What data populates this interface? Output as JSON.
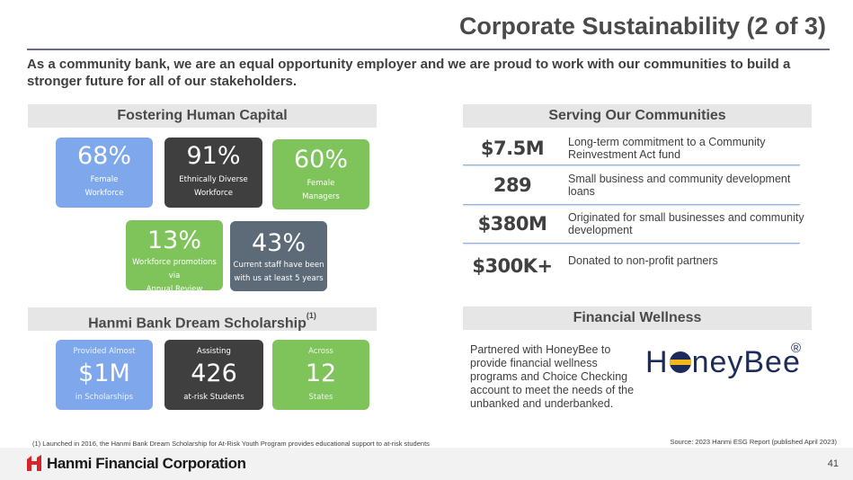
{
  "header": {
    "title": "Corporate Sustainability (2 of 3)",
    "intro": "As a community bank, we are an equal opportunity employer and we are proud to work with our communities to build a stronger future for all of our stakeholders."
  },
  "human_capital": {
    "heading": "Fostering Human Capital",
    "tiles": [
      {
        "value": "68%",
        "line1": "Female",
        "line2": "Workforce",
        "color": "#7fa8ec"
      },
      {
        "value": "91%",
        "line1": "Ethnically Diverse",
        "line2": "Workforce",
        "color": "#3f3f3f"
      },
      {
        "value": "60%",
        "line1": "Female",
        "line2": "Managers",
        "color": "#7fc45a"
      },
      {
        "value": "13%",
        "line1": "Workforce promotions via",
        "line2": "Annual Review",
        "color": "#7fc45a"
      },
      {
        "value": "43%",
        "line1": "Current staff have been",
        "line2": "with us at least 5 years",
        "color": "#5d6a78"
      }
    ]
  },
  "scholarship": {
    "heading": "Hanmi Bank Dream Scholarship",
    "footnote_marker": "(1)",
    "tiles": [
      {
        "top": "Provided Almost",
        "value": "$1M",
        "bottom": "in Scholarships",
        "color": "#7fa8ec"
      },
      {
        "top": "Assisting",
        "value": "426",
        "bottom": "at-risk Students",
        "color": "#3f3f3f"
      },
      {
        "top": "Across",
        "value": "12",
        "bottom": "States",
        "color": "#7fc45a"
      }
    ]
  },
  "communities": {
    "heading": "Serving Our Communities",
    "stats": [
      {
        "value": "$7.5M",
        "desc": "Long-term commitment to a Community Reinvestment Act fund"
      },
      {
        "value": "289",
        "desc": "Small business and community development loans"
      },
      {
        "value": "$380M",
        "desc": "Originated for small businesses and community development"
      },
      {
        "value": "$300K+",
        "desc": "Donated to non-profit partners"
      }
    ]
  },
  "wellness": {
    "heading": "Financial Wellness",
    "text": "Partnered with HoneyBee to provide financial wellness programs and Choice Checking account to meet the needs of the unbanked and underbanked.",
    "logo_pre": "H",
    "logo_post": "neyBee",
    "logo_reg": "®"
  },
  "footer": {
    "footnote": "(1)   Launched in 2016, the Hanmi Bank Dream Scholarship for At-Risk Youth Program provides educational support to at-risk students",
    "source": "Source: 2023 Hanmi ESG Report (published April 2023)",
    "company": "Hanmi Financial Corporation",
    "page_number": "41",
    "brand_color": "#d8232a"
  }
}
